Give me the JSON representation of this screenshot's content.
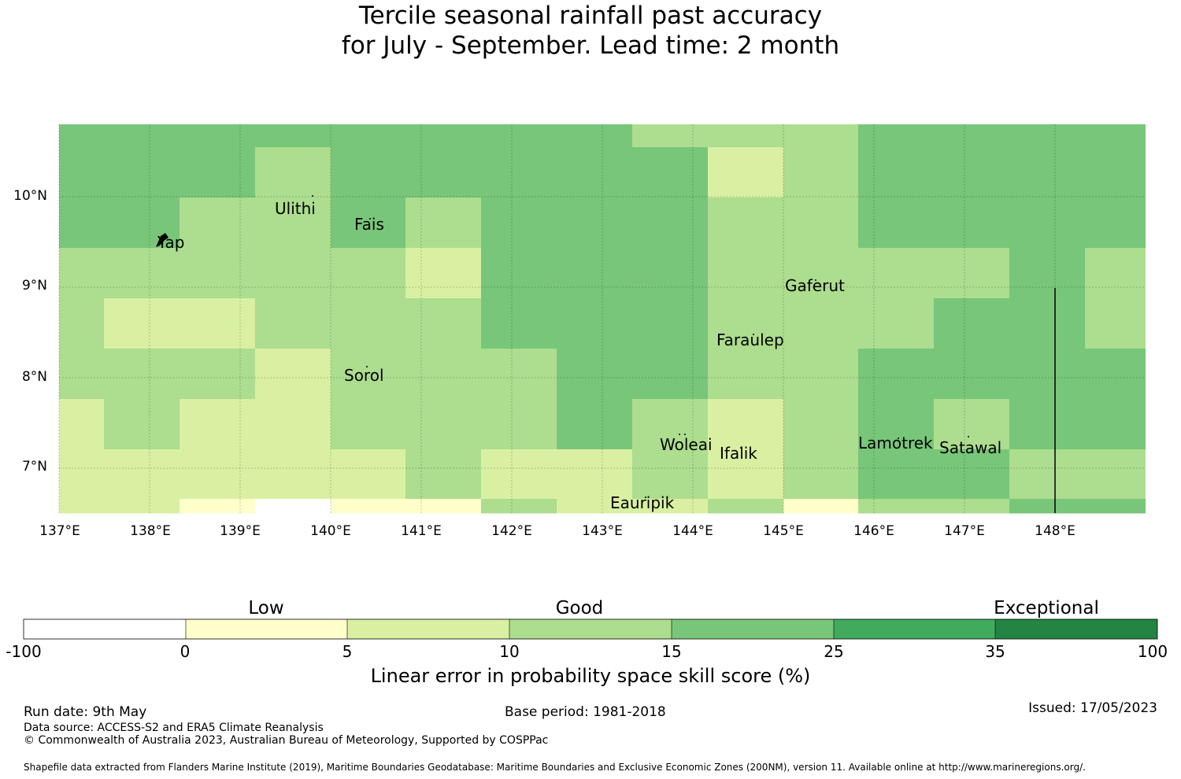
{
  "title": {
    "line1": "Tercile seasonal rainfall past accuracy",
    "line2": "for July - September. Lead time: 2 month"
  },
  "map": {
    "lat_labels": [
      "10°N",
      "9°N",
      "8°N",
      "7°N"
    ],
    "lon_labels": [
      "137°E",
      "138°E",
      "139°E",
      "140°E",
      "141°E",
      "142°E",
      "143°E",
      "144°E",
      "145°E",
      "146°E",
      "147°E",
      "148°E"
    ],
    "places": [
      {
        "name": "Ulithi"
      },
      {
        "name": "Fais"
      },
      {
        "name": "Yap"
      },
      {
        "name": "Gaferut"
      },
      {
        "name": "Faraulep"
      },
      {
        "name": "Sorol"
      },
      {
        "name": "Woleai"
      },
      {
        "name": "Ifalik"
      },
      {
        "name": "Lamotrek"
      },
      {
        "name": "Satawal"
      },
      {
        "name": "Eauripik"
      }
    ],
    "colors": {
      "c0": "#ffffff",
      "c1": "#ffffcc",
      "c2": "#d9f0a3",
      "c3": "#addd8e",
      "c4": "#78c679",
      "c5": "#41ab5d",
      "c6": "#238443"
    }
  },
  "legend": {
    "categories": [
      "Low",
      "Good",
      "Exceptional"
    ],
    "ticks": [
      "-100",
      "0",
      "5",
      "10",
      "15",
      "25",
      "35",
      "100"
    ],
    "title": "Linear error in probability space skill score (%)",
    "colors": [
      "#ffffff",
      "#ffffcc",
      "#d9f0a3",
      "#addd8e",
      "#78c679",
      "#41ab5d",
      "#238443"
    ]
  },
  "footer": {
    "run_date": "Run date: 9th May",
    "base_period": "Base period: 1981-2018",
    "issued": "Issued: 17/05/2023",
    "data_source": "Data source: ACCESS-S2 and ERA5 Climate Reanalysis",
    "copyright": "© Commonwealth of Australia 2023, Australian Bureau of Meteorology, Supported by COSPPac",
    "shapefile": "Shapefile data extracted from Flanders Marine Institute (2019), Maritime Boundaries Geodatabase: Maritime Boundaries and Exclusive Economic Zones (200NM), version 11. Available online at http://www.marineregions.org/."
  }
}
